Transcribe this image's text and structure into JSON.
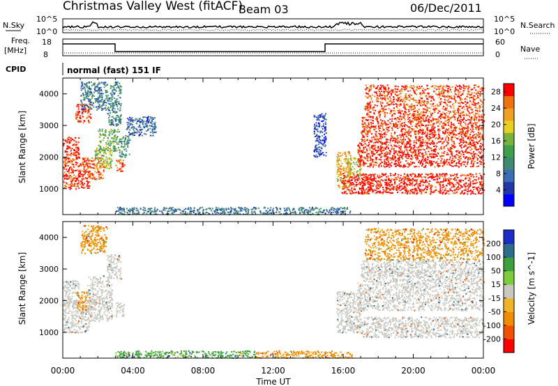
{
  "header": {
    "title": "Christmas Valley West (fitACF)",
    "beam": "Beam 03",
    "date": "06/Dec/2011"
  },
  "strip_labels": {
    "nsky": "N.Sky",
    "nsearch": "N.Search",
    "freq": "Freq.",
    "freq_unit": "[MHz]",
    "nave": "Nave",
    "cpid": "CPID",
    "cpid_value": "normal (fast) 151 IF"
  },
  "strip_ticks": {
    "noise_left": [
      "10^5",
      "10^0"
    ],
    "noise_right": [
      "10^5",
      "10^0"
    ],
    "freq_left": [
      "18",
      "8"
    ],
    "nave_right": [
      "60",
      "0"
    ]
  },
  "colors": {
    "power": [
      "#0000ff",
      "#2038a8",
      "#3c6cb4",
      "#3f8a72",
      "#3ea04c",
      "#78b43c",
      "#e8d020",
      "#f0a020",
      "#f07010",
      "#ff0000"
    ],
    "velocity": [
      "#ff0000",
      "#f05000",
      "#f08c00",
      "#f0b428",
      "#c8c8c0",
      "#7ccc3c",
      "#3ca03c",
      "#2c6c8c",
      "#1c2cc8"
    ]
  },
  "chart_data": [
    {
      "type": "heatmap",
      "name": "power",
      "ylabel": "Slant Range [km]",
      "xlabel": "",
      "colorbar_label": "Power [dB]",
      "colorbar_ticks": [
        "4",
        "8",
        "12",
        "16",
        "20",
        "24",
        "28"
      ],
      "colorbar_range": [
        0,
        30
      ],
      "yticks": [
        "1000",
        "2000",
        "3000",
        "4000"
      ],
      "ylim": [
        180,
        4500
      ],
      "xlim": [
        "00:00",
        "24:00"
      ],
      "xticks": [
        "00:00",
        "04:00",
        "08:00",
        "12:00",
        "16:00",
        "20:00",
        "00:00"
      ],
      "regions": [
        {
          "t": [
            0.0,
            0.9
          ],
          "r": [
            1850,
            2650
          ],
          "level": 28
        },
        {
          "t": [
            0.0,
            1.5
          ],
          "r": [
            1000,
            2000
          ],
          "level": 28
        },
        {
          "t": [
            0.7,
            1.6
          ],
          "r": [
            3100,
            3700
          ],
          "level": 28
        },
        {
          "t": [
            1.4,
            2.3
          ],
          "r": [
            1300,
            2000
          ],
          "level": 26
        },
        {
          "t": [
            1.8,
            2.8
          ],
          "r": [
            1650,
            2300
          ],
          "level": 18
        },
        {
          "t": [
            2.0,
            3.2
          ],
          "r": [
            2200,
            2900
          ],
          "level": 14
        },
        {
          "t": [
            2.5,
            3.3
          ],
          "r": [
            3000,
            4400
          ],
          "level": 10
        },
        {
          "t": [
            3.0,
            3.5
          ],
          "r": [
            1550,
            1950
          ],
          "level": 27
        },
        {
          "t": [
            3.2,
            3.8
          ],
          "r": [
            2000,
            2700
          ],
          "level": 11
        },
        {
          "t": [
            3.6,
            5.3
          ],
          "r": [
            2700,
            3300
          ],
          "level": 7
        },
        {
          "t": [
            1.0,
            2.5
          ],
          "r": [
            3500,
            4400
          ],
          "level": 9
        },
        {
          "t": [
            14.3,
            15.0
          ],
          "r": [
            2000,
            3400
          ],
          "level": 5
        },
        {
          "t": [
            15.6,
            16.4
          ],
          "r": [
            1000,
            2200
          ],
          "level": 22
        },
        {
          "t": [
            15.9,
            17.6
          ],
          "r": [
            850,
            1500
          ],
          "level": 29
        },
        {
          "t": [
            16.2,
            17.0
          ],
          "r": [
            1400,
            2000
          ],
          "level": 19
        },
        {
          "t": [
            17.0,
            24.0
          ],
          "r": [
            850,
            1500
          ],
          "level": 29
        },
        {
          "t": [
            16.8,
            24.0
          ],
          "r": [
            1700,
            2500
          ],
          "level": 29
        },
        {
          "t": [
            17.0,
            24.0
          ],
          "r": [
            2500,
            3300
          ],
          "level": 28
        },
        {
          "t": [
            17.2,
            24.0
          ],
          "r": [
            3300,
            4300
          ],
          "level": 27
        },
        {
          "t": [
            3.0,
            16.5
          ],
          "r": [
            200,
            430
          ],
          "level": 9
        }
      ]
    },
    {
      "type": "heatmap",
      "name": "velocity",
      "ylabel": "Slant Range [km]",
      "xlabel": "Time UT",
      "colorbar_label": "Velocity [m s^-1]",
      "colorbar_ticks": [
        "-200",
        "-100",
        "-50",
        "-15",
        "15",
        "50",
        "100",
        "200"
      ],
      "yticks": [
        "1000",
        "2000",
        "3000",
        "4000"
      ],
      "ylim": [
        180,
        4500
      ],
      "xlim": [
        "00:00",
        "24:00"
      ],
      "xticks": [
        "00:00",
        "04:00",
        "08:00",
        "12:00",
        "16:00",
        "20:00",
        "00:00"
      ],
      "regions": [
        {
          "t": [
            0.0,
            1.5
          ],
          "r": [
            1000,
            2000
          ],
          "v": 0
        },
        {
          "t": [
            0.0,
            0.9
          ],
          "r": [
            1850,
            2650
          ],
          "v": 0
        },
        {
          "t": [
            0.8,
            1.4
          ],
          "r": [
            1700,
            2300
          ],
          "v": -60
        },
        {
          "t": [
            1.4,
            2.8
          ],
          "r": [
            1350,
            2800
          ],
          "v": 0
        },
        {
          "t": [
            2.5,
            3.3
          ],
          "r": [
            2700,
            3500
          ],
          "v": 0
        },
        {
          "t": [
            3.0,
            3.5
          ],
          "r": [
            1500,
            1950
          ],
          "v": 0
        },
        {
          "t": [
            1.0,
            2.5
          ],
          "r": [
            3500,
            4400
          ],
          "v": -60
        },
        {
          "t": [
            15.6,
            17.0
          ],
          "r": [
            1000,
            2300
          ],
          "v": 0
        },
        {
          "t": [
            17.0,
            24.0
          ],
          "r": [
            850,
            1500
          ],
          "v": 0
        },
        {
          "t": [
            16.8,
            24.0
          ],
          "r": [
            1700,
            2600
          ],
          "v": 0
        },
        {
          "t": [
            17.0,
            24.0
          ],
          "r": [
            2600,
            3300
          ],
          "v": 0
        },
        {
          "t": [
            17.2,
            24.0
          ],
          "r": [
            3300,
            4300
          ],
          "v": -60
        },
        {
          "t": [
            3.0,
            11.0
          ],
          "r": [
            200,
            430
          ],
          "v": 60
        },
        {
          "t": [
            11.0,
            16.5
          ],
          "r": [
            200,
            430
          ],
          "v": -60
        }
      ]
    }
  ]
}
